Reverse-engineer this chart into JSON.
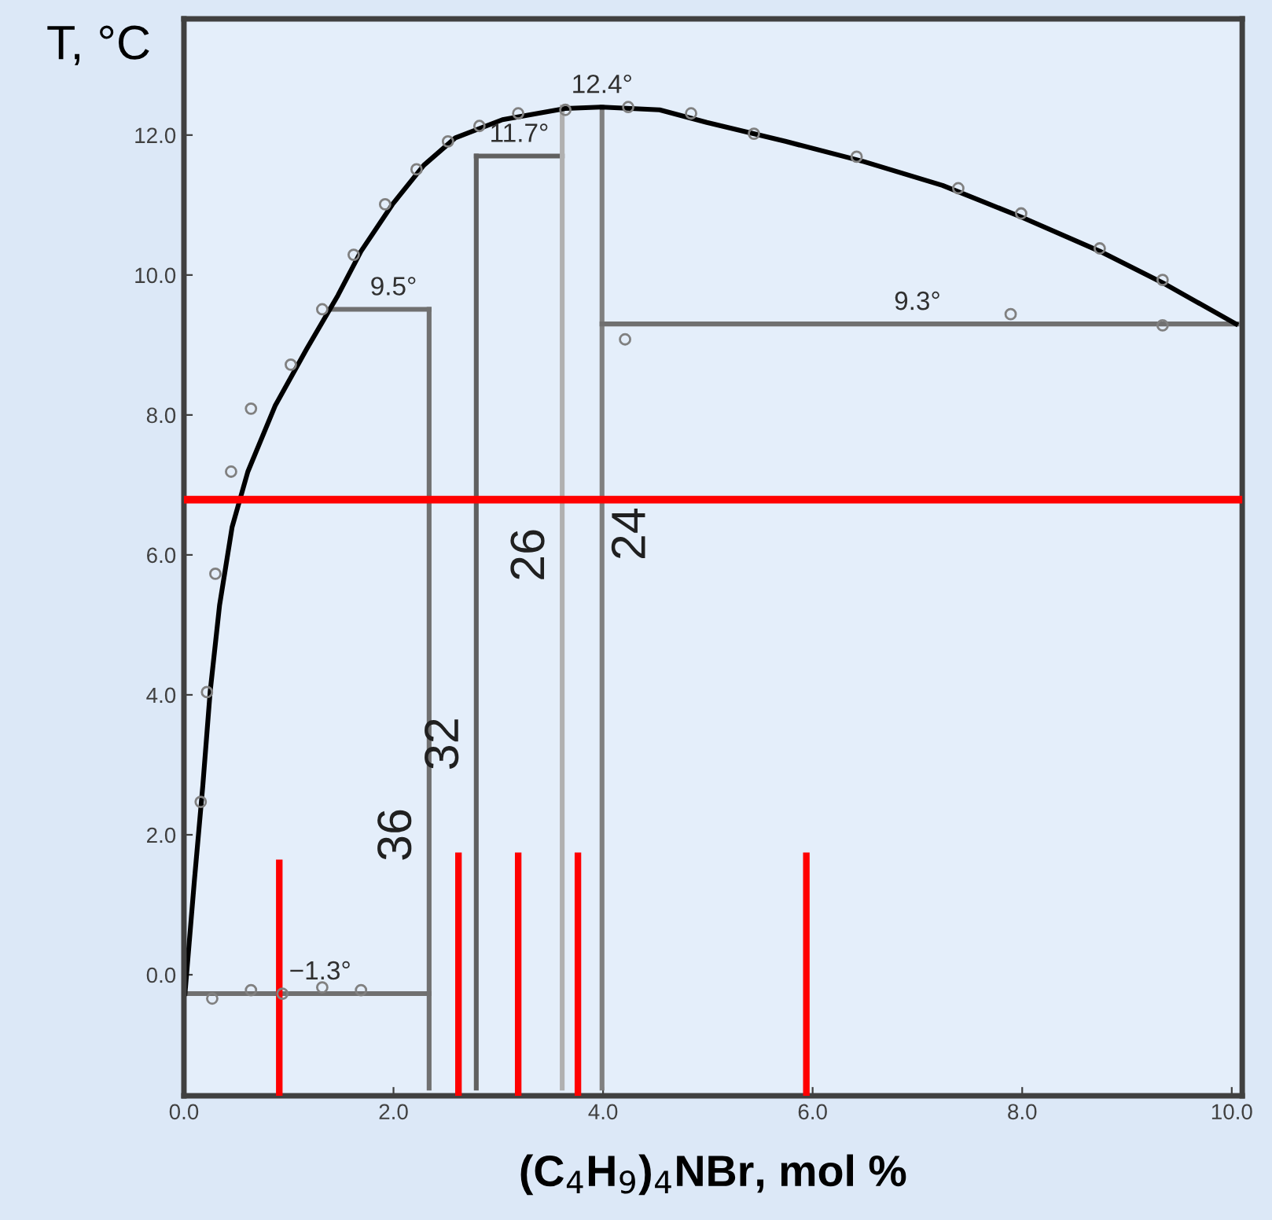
{
  "chart_data": {
    "type": "line",
    "xlabel": "(C$_{4}$H$_{9}$)$_{4}$NBr, mol %",
    "ylabel": "T, °C",
    "xlim": [
      0,
      10.1
    ],
    "ylim": [
      -1.73,
      13.66
    ],
    "xticks": [
      {
        "value": 0,
        "label": "0.0"
      },
      {
        "value": 2,
        "label": "2.0"
      },
      {
        "value": 4,
        "label": "4.0"
      },
      {
        "value": 6,
        "label": "6.0"
      },
      {
        "value": 8,
        "label": "8.0"
      },
      {
        "value": 10,
        "label": "10.0"
      }
    ],
    "yticks": [
      {
        "value": 0,
        "label": "0.0"
      },
      {
        "value": 2,
        "label": "2.0"
      },
      {
        "value": 4,
        "label": "4.0"
      },
      {
        "value": 6,
        "label": "6.0"
      },
      {
        "value": 8,
        "label": "8.0"
      },
      {
        "value": 10,
        "label": "10.0"
      },
      {
        "value": 12,
        "label": "12.0"
      }
    ],
    "grid": false,
    "legend": false,
    "series": [
      {
        "color": "#707070",
        "marker": "none",
        "x": [
          0,
          2.34
        ],
        "values": [
          -0.27,
          -0.27
        ]
      },
      {
        "color": "#707070",
        "marker": "none",
        "x": [
          2.34,
          2.34
        ],
        "values": [
          -1.62,
          9.51
        ]
      },
      {
        "color": "#707070",
        "marker": "none",
        "x": [
          1.39,
          2.34
        ],
        "values": [
          9.51,
          9.51
        ]
      },
      {
        "color": "#606060",
        "marker": "none",
        "x": [
          2.79,
          2.79
        ],
        "values": [
          -1.62,
          11.7
        ]
      },
      {
        "color": "#606060",
        "marker": "none",
        "x": [
          2.79,
          3.61
        ],
        "values": [
          11.7,
          11.7
        ]
      },
      {
        "color": "#b0b0b0",
        "marker": "none",
        "x": [
          3.61,
          3.61
        ],
        "values": [
          -1.62,
          12.4
        ]
      },
      {
        "color": "#808080",
        "marker": "none",
        "x": [
          3.99,
          3.99
        ],
        "values": [
          -1.62,
          12.4
        ]
      },
      {
        "color": "#707070",
        "marker": "none",
        "x": [
          3.99,
          10.05
        ],
        "values": [
          9.3,
          9.3
        ]
      },
      {
        "color": "#000000",
        "marker": "none",
        "x": [
          0.01,
          0.1,
          0.18,
          0.25,
          0.34,
          0.46,
          0.61,
          0.87,
          1.17,
          1.47,
          1.69,
          1.99,
          2.29,
          2.59,
          3.04,
          3.64,
          3.99,
          4.54,
          4.99,
          5.74,
          6.49,
          7.24,
          7.99,
          8.74,
          9.34,
          10.04
        ],
        "values": [
          -0.27,
          1.35,
          2.7,
          4.04,
          5.28,
          6.4,
          7.19,
          8.13,
          8.94,
          9.71,
          10.34,
          11.01,
          11.57,
          11.96,
          12.22,
          12.38,
          12.4,
          12.36,
          12.18,
          11.91,
          11.62,
          11.28,
          10.83,
          10.34,
          9.89,
          9.3
        ]
      },
      {
        "type": "scatter",
        "color": "#808080",
        "marker": "circle",
        "x": [
          0.16,
          0.22,
          0.3,
          0.45,
          0.64,
          1.02,
          1.32,
          1.62,
          1.92,
          2.22,
          2.52,
          2.82,
          3.19,
          3.64,
          4.24,
          4.84,
          5.44,
          6.42,
          7.39,
          7.99,
          8.74,
          9.34,
          4.21,
          7.89,
          9.34,
          0.27,
          0.64,
          0.94,
          1.32,
          1.69
        ],
        "values": [
          2.47,
          4.04,
          5.73,
          7.19,
          8.09,
          8.72,
          9.51,
          10.29,
          11.01,
          11.51,
          11.91,
          12.13,
          12.31,
          12.36,
          12.4,
          12.31,
          12.02,
          11.69,
          11.24,
          10.88,
          10.38,
          9.93,
          9.08,
          9.44,
          9.28,
          -0.34,
          -0.22,
          -0.27,
          -0.18,
          -0.22
        ]
      },
      {
        "color": "#ff0000",
        "marker": "none",
        "x": [
          0.91,
          0.91
        ],
        "values": [
          -1.73,
          1.6
        ]
      },
      {
        "color": "#ff0000",
        "marker": "none",
        "x": [
          2.62,
          2.62
        ],
        "values": [
          -1.73,
          1.7
        ]
      },
      {
        "color": "#ff0000",
        "marker": "none",
        "x": [
          3.19,
          3.19
        ],
        "values": [
          -1.73,
          1.7
        ]
      },
      {
        "color": "#ff0000",
        "marker": "none",
        "x": [
          3.76,
          3.76
        ],
        "values": [
          -1.73,
          1.7
        ]
      },
      {
        "color": "#ff0000",
        "marker": "none",
        "x": [
          5.94,
          5.94
        ],
        "values": [
          -1.73,
          1.7
        ]
      }
    ],
    "ref_lines": [
      {
        "axis": "y",
        "value": 6.79,
        "color": "#ff0000"
      }
    ],
    "annotations": [
      {
        "text": "12.4°",
        "x": 3.99,
        "y": 12.4
      },
      {
        "text": "11.7°",
        "x": 3.2,
        "y": 11.7
      },
      {
        "text": "9.5°",
        "x": 2.0,
        "y": 9.51
      },
      {
        "text": "9.3°",
        "x": 7.0,
        "y": 9.3
      },
      {
        "text": "−1.3°",
        "x": 1.3,
        "y": -0.27
      },
      {
        "text": "36",
        "x": 2.34,
        "y": 2.0
      },
      {
        "text": "32",
        "x": 2.79,
        "y": 3.3
      },
      {
        "text": "26",
        "x": 3.61,
        "y": 6.0
      },
      {
        "text": "24",
        "x": 3.99,
        "y": 6.3
      }
    ]
  }
}
